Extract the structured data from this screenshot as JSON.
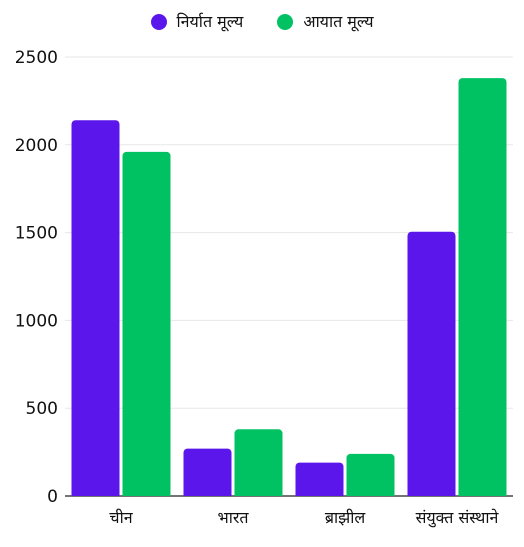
{
  "chart_data": {
    "type": "bar",
    "categories": [
      "चीन",
      "भारत",
      "ब्राझील",
      "संयुक्त संस्थाने"
    ],
    "series": [
      {
        "name": "निर्यात मूल्य",
        "color": "#5b17eb",
        "values": [
          2140,
          270,
          190,
          1505
        ]
      },
      {
        "name": "आयात मूल्य",
        "color": "#00c263",
        "values": [
          1960,
          380,
          240,
          2380
        ]
      }
    ],
    "ylim": [
      0,
      2500
    ],
    "yticks": [
      0,
      500,
      1000,
      1500,
      2000,
      2500
    ],
    "grid": true,
    "legend": "top-center"
  }
}
